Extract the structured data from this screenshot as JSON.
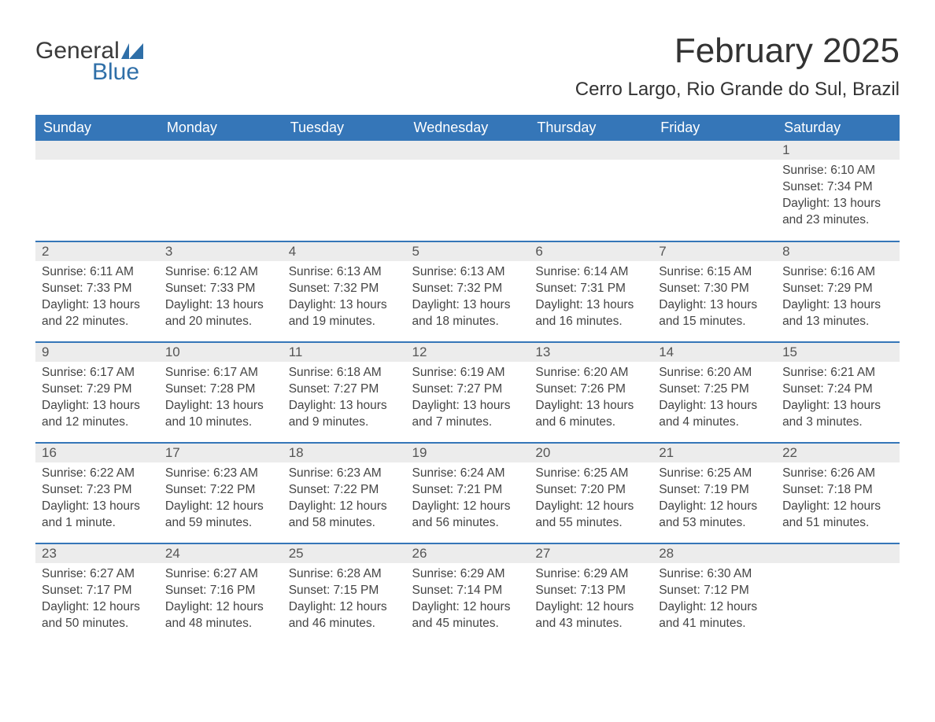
{
  "logo": {
    "text1": "General",
    "text2": "Blue",
    "icon_color": "#2f6fa8"
  },
  "title": "February 2025",
  "location": "Cerro Largo, Rio Grande do Sul, Brazil",
  "colors": {
    "header_bg": "#3576b8",
    "header_text": "#ffffff",
    "row_border": "#3576b8",
    "daynum_bg": "#ececec",
    "body_text": "#444444"
  },
  "day_headers": [
    "Sunday",
    "Monday",
    "Tuesday",
    "Wednesday",
    "Thursday",
    "Friday",
    "Saturday"
  ],
  "weeks": [
    [
      {
        "n": "",
        "sr": "",
        "ss": "",
        "dl": ""
      },
      {
        "n": "",
        "sr": "",
        "ss": "",
        "dl": ""
      },
      {
        "n": "",
        "sr": "",
        "ss": "",
        "dl": ""
      },
      {
        "n": "",
        "sr": "",
        "ss": "",
        "dl": ""
      },
      {
        "n": "",
        "sr": "",
        "ss": "",
        "dl": ""
      },
      {
        "n": "",
        "sr": "",
        "ss": "",
        "dl": ""
      },
      {
        "n": "1",
        "sr": "Sunrise: 6:10 AM",
        "ss": "Sunset: 7:34 PM",
        "dl": "Daylight: 13 hours and 23 minutes."
      }
    ],
    [
      {
        "n": "2",
        "sr": "Sunrise: 6:11 AM",
        "ss": "Sunset: 7:33 PM",
        "dl": "Daylight: 13 hours and 22 minutes."
      },
      {
        "n": "3",
        "sr": "Sunrise: 6:12 AM",
        "ss": "Sunset: 7:33 PM",
        "dl": "Daylight: 13 hours and 20 minutes."
      },
      {
        "n": "4",
        "sr": "Sunrise: 6:13 AM",
        "ss": "Sunset: 7:32 PM",
        "dl": "Daylight: 13 hours and 19 minutes."
      },
      {
        "n": "5",
        "sr": "Sunrise: 6:13 AM",
        "ss": "Sunset: 7:32 PM",
        "dl": "Daylight: 13 hours and 18 minutes."
      },
      {
        "n": "6",
        "sr": "Sunrise: 6:14 AM",
        "ss": "Sunset: 7:31 PM",
        "dl": "Daylight: 13 hours and 16 minutes."
      },
      {
        "n": "7",
        "sr": "Sunrise: 6:15 AM",
        "ss": "Sunset: 7:30 PM",
        "dl": "Daylight: 13 hours and 15 minutes."
      },
      {
        "n": "8",
        "sr": "Sunrise: 6:16 AM",
        "ss": "Sunset: 7:29 PM",
        "dl": "Daylight: 13 hours and 13 minutes."
      }
    ],
    [
      {
        "n": "9",
        "sr": "Sunrise: 6:17 AM",
        "ss": "Sunset: 7:29 PM",
        "dl": "Daylight: 13 hours and 12 minutes."
      },
      {
        "n": "10",
        "sr": "Sunrise: 6:17 AM",
        "ss": "Sunset: 7:28 PM",
        "dl": "Daylight: 13 hours and 10 minutes."
      },
      {
        "n": "11",
        "sr": "Sunrise: 6:18 AM",
        "ss": "Sunset: 7:27 PM",
        "dl": "Daylight: 13 hours and 9 minutes."
      },
      {
        "n": "12",
        "sr": "Sunrise: 6:19 AM",
        "ss": "Sunset: 7:27 PM",
        "dl": "Daylight: 13 hours and 7 minutes."
      },
      {
        "n": "13",
        "sr": "Sunrise: 6:20 AM",
        "ss": "Sunset: 7:26 PM",
        "dl": "Daylight: 13 hours and 6 minutes."
      },
      {
        "n": "14",
        "sr": "Sunrise: 6:20 AM",
        "ss": "Sunset: 7:25 PM",
        "dl": "Daylight: 13 hours and 4 minutes."
      },
      {
        "n": "15",
        "sr": "Sunrise: 6:21 AM",
        "ss": "Sunset: 7:24 PM",
        "dl": "Daylight: 13 hours and 3 minutes."
      }
    ],
    [
      {
        "n": "16",
        "sr": "Sunrise: 6:22 AM",
        "ss": "Sunset: 7:23 PM",
        "dl": "Daylight: 13 hours and 1 minute."
      },
      {
        "n": "17",
        "sr": "Sunrise: 6:23 AM",
        "ss": "Sunset: 7:22 PM",
        "dl": "Daylight: 12 hours and 59 minutes."
      },
      {
        "n": "18",
        "sr": "Sunrise: 6:23 AM",
        "ss": "Sunset: 7:22 PM",
        "dl": "Daylight: 12 hours and 58 minutes."
      },
      {
        "n": "19",
        "sr": "Sunrise: 6:24 AM",
        "ss": "Sunset: 7:21 PM",
        "dl": "Daylight: 12 hours and 56 minutes."
      },
      {
        "n": "20",
        "sr": "Sunrise: 6:25 AM",
        "ss": "Sunset: 7:20 PM",
        "dl": "Daylight: 12 hours and 55 minutes."
      },
      {
        "n": "21",
        "sr": "Sunrise: 6:25 AM",
        "ss": "Sunset: 7:19 PM",
        "dl": "Daylight: 12 hours and 53 minutes."
      },
      {
        "n": "22",
        "sr": "Sunrise: 6:26 AM",
        "ss": "Sunset: 7:18 PM",
        "dl": "Daylight: 12 hours and 51 minutes."
      }
    ],
    [
      {
        "n": "23",
        "sr": "Sunrise: 6:27 AM",
        "ss": "Sunset: 7:17 PM",
        "dl": "Daylight: 12 hours and 50 minutes."
      },
      {
        "n": "24",
        "sr": "Sunrise: 6:27 AM",
        "ss": "Sunset: 7:16 PM",
        "dl": "Daylight: 12 hours and 48 minutes."
      },
      {
        "n": "25",
        "sr": "Sunrise: 6:28 AM",
        "ss": "Sunset: 7:15 PM",
        "dl": "Daylight: 12 hours and 46 minutes."
      },
      {
        "n": "26",
        "sr": "Sunrise: 6:29 AM",
        "ss": "Sunset: 7:14 PM",
        "dl": "Daylight: 12 hours and 45 minutes."
      },
      {
        "n": "27",
        "sr": "Sunrise: 6:29 AM",
        "ss": "Sunset: 7:13 PM",
        "dl": "Daylight: 12 hours and 43 minutes."
      },
      {
        "n": "28",
        "sr": "Sunrise: 6:30 AM",
        "ss": "Sunset: 7:12 PM",
        "dl": "Daylight: 12 hours and 41 minutes."
      },
      {
        "n": "",
        "sr": "",
        "ss": "",
        "dl": ""
      }
    ]
  ]
}
